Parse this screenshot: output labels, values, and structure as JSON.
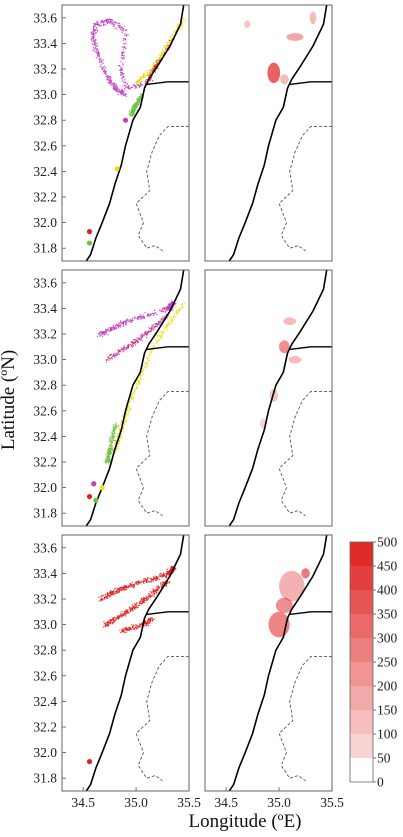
{
  "figure": {
    "xlabel": "Longitude (ºE)",
    "ylabel": "Latitude (ºN)",
    "lat_ticks": [
      "33.6",
      "33.4",
      "33.2",
      "33.0",
      "32.8",
      "32.6",
      "32.4",
      "32.2",
      "32.0",
      "31.8"
    ],
    "lon_ticks": [
      "34.5",
      "35.0",
      "35.5"
    ],
    "colorbar_ticks": [
      "500",
      "450",
      "400",
      "350",
      "300",
      "250",
      "200",
      "150",
      "100",
      "50",
      "0"
    ],
    "colors": {
      "magenta": "#c040c0",
      "yellow": "#e8e020",
      "green": "#70c040",
      "red": "#e02020"
    },
    "panels": [
      {
        "row": 0,
        "col": 0,
        "content": "particles",
        "release_points": [
          {
            "lon": 34.56,
            "lat": 31.93,
            "color": "red"
          },
          {
            "lon": 34.56,
            "lat": 31.84,
            "color": "green"
          },
          {
            "lon": 34.82,
            "lat": 32.42,
            "color": "yellow"
          },
          {
            "lon": 34.9,
            "lat": 32.8,
            "color": "magenta"
          }
        ]
      },
      {
        "row": 0,
        "col": 1,
        "content": "density"
      },
      {
        "row": 1,
        "col": 0,
        "content": "particles",
        "release_points": [
          {
            "lon": 34.6,
            "lat": 32.03,
            "color": "magenta"
          },
          {
            "lon": 34.68,
            "lat": 32.0,
            "color": "yellow"
          },
          {
            "lon": 34.56,
            "lat": 31.93,
            "color": "red"
          },
          {
            "lon": 34.62,
            "lat": 31.9,
            "color": "green"
          }
        ]
      },
      {
        "row": 1,
        "col": 1,
        "content": "density"
      },
      {
        "row": 2,
        "col": 0,
        "content": "particles",
        "release_points": [
          {
            "lon": 34.56,
            "lat": 31.93,
            "color": "red"
          }
        ]
      },
      {
        "row": 2,
        "col": 1,
        "content": "density"
      }
    ]
  },
  "chart_data": {
    "type": "heatmap",
    "xlabel": "Longitude (ºE)",
    "ylabel": "Latitude (ºN)",
    "xlim": [
      34.3,
      35.5
    ],
    "ylim": [
      31.7,
      33.7
    ],
    "colorbar": {
      "min": 0,
      "max": 500,
      "levels": [
        0,
        50,
        100,
        150,
        200,
        250,
        300,
        350,
        400,
        450,
        500
      ]
    }
  }
}
